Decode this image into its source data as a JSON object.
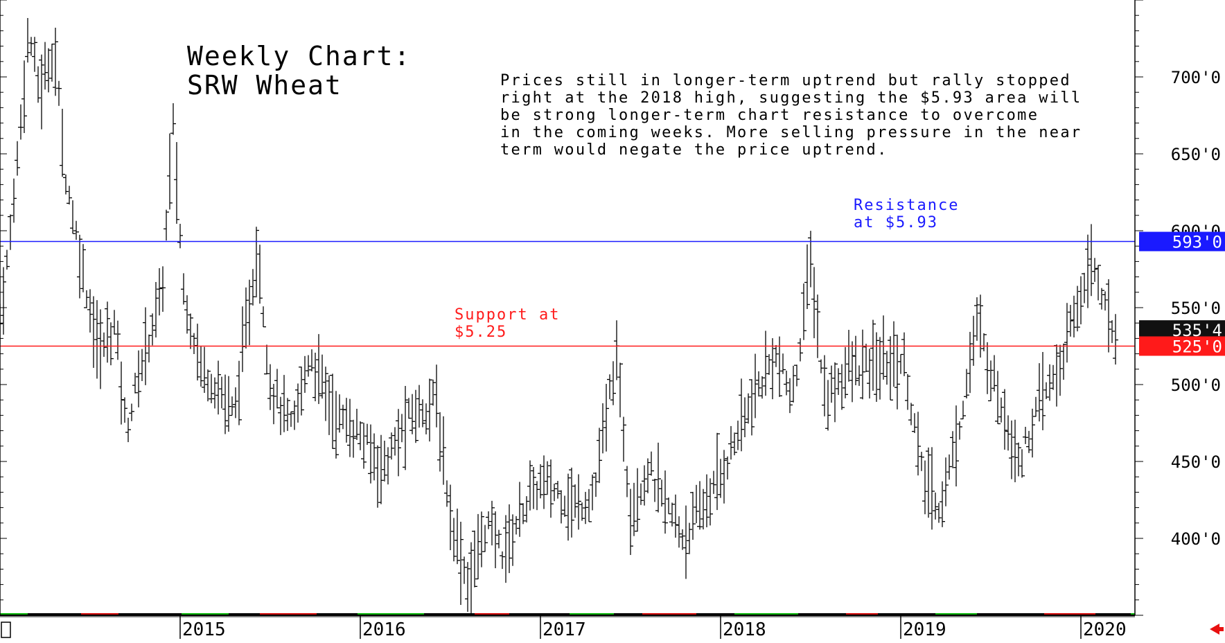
{
  "title_line1": "Weekly Chart:",
  "title_line2": "SRW Wheat",
  "commentary": [
    "Prices still in longer-term uptrend but rally stopped",
    "right at the 2018 high, suggesting the $5.93 area will",
    "be strong longer-term chart resistance to overcome",
    "in the coming weeks. More selling pressure in the near",
    "term would negate the price uptrend."
  ],
  "resistance_label": [
    "Resistance",
    "at $5.93"
  ],
  "support_label": [
    "Support at",
    "$5.25"
  ],
  "colors": {
    "resistance": "#1a1aff",
    "support": "#ff1a1a",
    "last_badge": "#111111",
    "bars": "#000000",
    "strip_green": "#00b000",
    "strip_red": "#cc0000"
  },
  "chart_data": {
    "type": "bar",
    "style": "ohlc",
    "ylim": [
      350,
      750
    ],
    "yticks": [
      400,
      450,
      500,
      550,
      600,
      650,
      700
    ],
    "ytick_labels": [
      "400'0",
      "450'0",
      "500'0",
      "550'0",
      "600'0",
      "650'0",
      "700'0"
    ],
    "xticks": [
      {
        "year": 2015,
        "label": "2015"
      },
      {
        "year": 2016,
        "label": "2016"
      },
      {
        "year": 2017,
        "label": "2017"
      },
      {
        "year": 2018,
        "label": "2018"
      },
      {
        "year": 2019,
        "label": "2019"
      },
      {
        "year": 2020,
        "label": "2020"
      }
    ],
    "x_start_year": 2014.0,
    "x_end_year": 2020.3,
    "resistance": {
      "value": 593,
      "badge": "593'0"
    },
    "support": {
      "value": 525,
      "badge": "525'0"
    },
    "last_price": {
      "value": 535.5,
      "badge": "535'4"
    },
    "keypoints": [
      [
        2014.0,
        540
      ],
      [
        2014.06,
        600
      ],
      [
        2014.16,
        730
      ],
      [
        2014.22,
        690
      ],
      [
        2014.3,
        720
      ],
      [
        2014.36,
        640
      ],
      [
        2014.45,
        580
      ],
      [
        2014.55,
        520
      ],
      [
        2014.64,
        540
      ],
      [
        2014.7,
        470
      ],
      [
        2014.8,
        520
      ],
      [
        2014.9,
        560
      ],
      [
        2014.96,
        670
      ],
      [
        2015.02,
        560
      ],
      [
        2015.12,
        510
      ],
      [
        2015.2,
        500
      ],
      [
        2015.3,
        480
      ],
      [
        2015.43,
        590
      ],
      [
        2015.5,
        500
      ],
      [
        2015.62,
        470
      ],
      [
        2015.72,
        520
      ],
      [
        2015.86,
        480
      ],
      [
        2015.98,
        470
      ],
      [
        2016.12,
        445
      ],
      [
        2016.28,
        480
      ],
      [
        2016.42,
        490
      ],
      [
        2016.5,
        415
      ],
      [
        2016.6,
        370
      ],
      [
        2016.7,
        410
      ],
      [
        2016.8,
        390
      ],
      [
        2016.9,
        420
      ],
      [
        2017.0,
        435
      ],
      [
        2017.1,
        430
      ],
      [
        2017.2,
        420
      ],
      [
        2017.3,
        430
      ],
      [
        2017.42,
        520
      ],
      [
        2017.5,
        420
      ],
      [
        2017.6,
        445
      ],
      [
        2017.7,
        420
      ],
      [
        2017.8,
        400
      ],
      [
        2017.9,
        420
      ],
      [
        2018.0,
        440
      ],
      [
        2018.1,
        470
      ],
      [
        2018.2,
        495
      ],
      [
        2018.3,
        520
      ],
      [
        2018.4,
        490
      ],
      [
        2018.5,
        580
      ],
      [
        2018.58,
        490
      ],
      [
        2018.7,
        510
      ],
      [
        2018.8,
        510
      ],
      [
        2018.9,
        515
      ],
      [
        2019.02,
        515
      ],
      [
        2019.12,
        440
      ],
      [
        2019.22,
        420
      ],
      [
        2019.32,
        470
      ],
      [
        2019.42,
        540
      ],
      [
        2019.55,
        490
      ],
      [
        2019.66,
        450
      ],
      [
        2019.78,
        490
      ],
      [
        2019.88,
        510
      ],
      [
        2019.98,
        550
      ],
      [
        2020.05,
        580
      ],
      [
        2020.1,
        570
      ],
      [
        2020.15,
        540
      ],
      [
        2020.2,
        535
      ]
    ]
  }
}
